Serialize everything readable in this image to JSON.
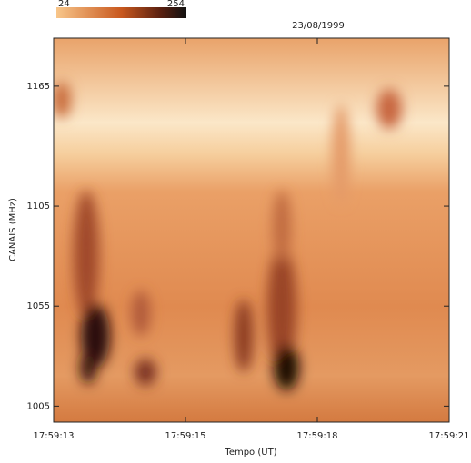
{
  "chart_data": {
    "type": "spectrogram",
    "title": "23/08/1999",
    "colorbar_labels": [
      "24",
      "254"
    ],
    "x_label": "Tempo (UT)",
    "y_label": "CANAIS (MHz)",
    "categories": [
      "17:59:13",
      "17:59:15",
      "17:59:18",
      "17:59:21"
    ],
    "ylim": [
      997,
      1189
    ],
    "yticks": [
      1005,
      1055,
      1105,
      1165
    ]
  }
}
